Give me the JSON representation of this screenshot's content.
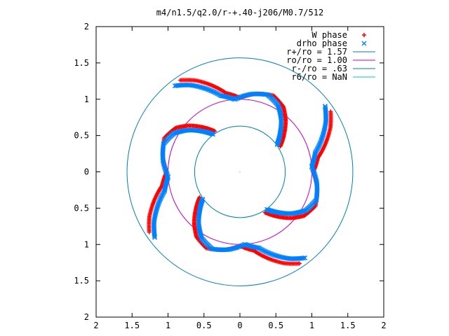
{
  "chart_data": {
    "type": "scatter",
    "title": "m4/n1.5/q2.0/r-+.40-j206/M0.7/512",
    "xlim": [
      -2,
      2
    ],
    "ylim": [
      -2,
      2
    ],
    "x_tick_values": [
      -2,
      -1.5,
      -1,
      -0.5,
      0,
      0.5,
      1,
      1.5,
      2
    ],
    "x_tick_labels": [
      "2",
      "1.5",
      "1",
      "0.5",
      "0",
      "0.5",
      "1",
      "1.5",
      "2"
    ],
    "y_tick_values": [
      2,
      1.5,
      1,
      0.5,
      0,
      -0.5,
      -1,
      -1.5,
      -2
    ],
    "y_tick_labels": [
      "2",
      "1.5",
      "1",
      "0.5",
      "0",
      "0.5",
      "1",
      "1.5",
      "2"
    ],
    "grid": false,
    "legend_position": "top-right",
    "series": [
      {
        "name": "W phase",
        "marker": "+",
        "color": "#ff0000",
        "arms": [
          {
            "angles_deg": [
              32,
              40,
              48,
              56,
              66,
              78,
              90,
              100,
              108,
              116,
              124
            ],
            "radii": [
              0.66,
              0.8,
              0.95,
              1.08,
              1.15,
              1.1,
              1.02,
              1.1,
              1.25,
              1.4,
              1.52
            ]
          },
          {
            "angles_deg": [
              122,
              130,
              138,
              146,
              156,
              168,
              180,
              190,
              198,
              206,
              214
            ],
            "radii": [
              0.66,
              0.8,
              0.95,
              1.08,
              1.15,
              1.1,
              1.02,
              1.1,
              1.25,
              1.4,
              1.52
            ]
          },
          {
            "angles_deg": [
              212,
              220,
              228,
              236,
              246,
              258,
              270,
              280,
              288,
              296,
              304
            ],
            "radii": [
              0.66,
              0.8,
              0.95,
              1.08,
              1.15,
              1.1,
              1.02,
              1.1,
              1.25,
              1.4,
              1.52
            ]
          },
          {
            "angles_deg": [
              302,
              310,
              318,
              326,
              336,
              348,
              360,
              10,
              18,
              26,
              34
            ],
            "radii": [
              0.66,
              0.8,
              0.95,
              1.08,
              1.15,
              1.1,
              1.02,
              1.1,
              1.25,
              1.4,
              1.52
            ]
          }
        ]
      },
      {
        "name": "drho phase",
        "marker": "x",
        "color": "#0080ff",
        "arms": [
          {
            "angles_deg": [
              36,
              44,
              52,
              60,
              70,
              82,
              94,
              104,
              112,
              120,
              128
            ],
            "radii": [
              0.64,
              0.78,
              0.93,
              1.06,
              1.13,
              1.08,
              1.0,
              1.08,
              1.23,
              1.38,
              1.5
            ]
          },
          {
            "angles_deg": [
              126,
              134,
              142,
              150,
              160,
              172,
              184,
              194,
              202,
              210,
              218
            ],
            "radii": [
              0.64,
              0.78,
              0.93,
              1.06,
              1.13,
              1.08,
              1.0,
              1.08,
              1.23,
              1.38,
              1.5
            ]
          },
          {
            "angles_deg": [
              216,
              224,
              232,
              240,
              250,
              262,
              274,
              284,
              292,
              300,
              308
            ],
            "radii": [
              0.64,
              0.78,
              0.93,
              1.06,
              1.13,
              1.08,
              1.0,
              1.08,
              1.23,
              1.38,
              1.5
            ]
          },
          {
            "angles_deg": [
              306,
              314,
              322,
              330,
              340,
              352,
              4,
              14,
              22,
              30,
              38
            ],
            "radii": [
              0.64,
              0.78,
              0.93,
              1.06,
              1.13,
              1.08,
              1.0,
              1.08,
              1.23,
              1.38,
              1.5
            ]
          }
        ]
      },
      {
        "name": "r+/ro = 1.57",
        "type": "circle",
        "radius": 1.57,
        "color": "#0080b0"
      },
      {
        "name": "ro/ro = 1.00",
        "type": "circle",
        "radius": 1.0,
        "color": "#c000c0"
      },
      {
        "name": "r-/ro = .63",
        "type": "circle",
        "radius": 0.63,
        "color": "#0080b0"
      },
      {
        "name": "r6/ro = NaN",
        "type": "circle",
        "radius": null,
        "color": "#00c0e0"
      }
    ]
  }
}
